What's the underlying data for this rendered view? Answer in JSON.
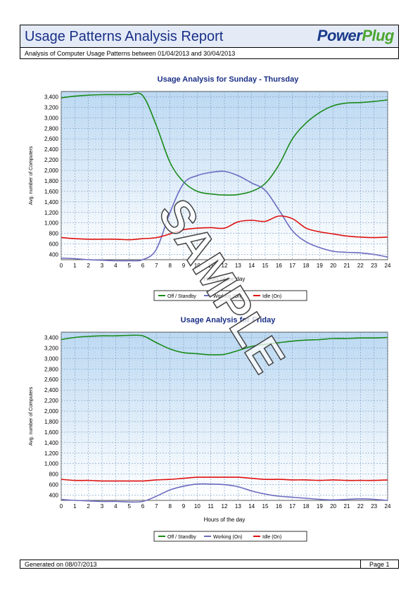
{
  "report": {
    "title": "Usage Patterns Analysis Report",
    "subtitle": "Analysis of Computer Usage Patterns between 01/04/2013 and 30/04/2013",
    "logo_part1": "Power",
    "logo_part2": "Plug",
    "footer_left": "Generated on  08/07/2013",
    "footer_right": "Page  1",
    "watermark": "SAMPLE"
  },
  "colors": {
    "off_standby": "#1a8a1a",
    "working": "#6b6bc0",
    "idle": "#e01010",
    "title": "#1a2f86"
  },
  "chart_data": [
    {
      "type": "line",
      "title": "Usage Analysis for Sunday - Thursday",
      "xlabel": "Hours of the day",
      "ylabel": "Avg. number of Computers",
      "xlim": [
        0,
        24
      ],
      "ylim": [
        300,
        3500
      ],
      "yticks": [
        400,
        600,
        800,
        1000,
        1200,
        1400,
        1600,
        1800,
        2000,
        2200,
        2400,
        2600,
        2800,
        3000,
        3200,
        3400
      ],
      "ytick_labels": [
        "400",
        "600",
        "800",
        "1,000",
        "1,200",
        "1,400",
        "1,600",
        "1,800",
        "2,000",
        "2,200",
        "2,400",
        "2,600",
        "2,800",
        "3,000",
        "3,200",
        "3,400"
      ],
      "xticks": [
        0,
        1,
        2,
        3,
        4,
        5,
        6,
        7,
        8,
        9,
        10,
        11,
        12,
        13,
        14,
        15,
        16,
        17,
        18,
        19,
        20,
        21,
        22,
        23,
        24
      ],
      "grid": true,
      "legend_position": "bottom",
      "x": [
        0,
        1,
        2,
        3,
        4,
        5,
        6,
        7,
        8,
        9,
        10,
        11,
        12,
        13,
        14,
        15,
        16,
        17,
        18,
        19,
        20,
        21,
        22,
        23,
        24
      ],
      "series": [
        {
          "name": "Off / Standby",
          "color_key": "off_standby",
          "values": [
            3380,
            3410,
            3430,
            3440,
            3440,
            3440,
            3420,
            2850,
            2150,
            1780,
            1600,
            1550,
            1530,
            1540,
            1600,
            1750,
            2100,
            2600,
            2900,
            3100,
            3230,
            3280,
            3290,
            3310,
            3340
          ]
        },
        {
          "name": "Working (On)",
          "color_key": "working",
          "values": [
            330,
            320,
            300,
            290,
            280,
            280,
            300,
            500,
            1200,
            1750,
            1900,
            1960,
            1980,
            1900,
            1760,
            1620,
            1250,
            850,
            640,
            530,
            460,
            440,
            430,
            400,
            350
          ]
        },
        {
          "name": "Idle (On)",
          "color_key": "idle",
          "values": [
            720,
            700,
            690,
            690,
            690,
            680,
            700,
            720,
            790,
            870,
            900,
            910,
            900,
            1020,
            1050,
            1030,
            1130,
            1080,
            900,
            830,
            790,
            750,
            730,
            720,
            730
          ]
        }
      ]
    },
    {
      "type": "line",
      "title": "Usage Analysis for Friday",
      "xlabel": "Hours of the day",
      "ylabel": "Avg. number of Computers",
      "xlim": [
        0,
        24
      ],
      "ylim": [
        300,
        3500
      ],
      "yticks": [
        400,
        600,
        800,
        1000,
        1200,
        1400,
        1600,
        1800,
        2000,
        2200,
        2400,
        2600,
        2800,
        3000,
        3200,
        3400
      ],
      "ytick_labels": [
        "400",
        "600",
        "800",
        "1,000",
        "1,200",
        "1,400",
        "1,600",
        "1,800",
        "2,000",
        "2,200",
        "2,400",
        "2,600",
        "2,800",
        "3,000",
        "3,200",
        "3,400"
      ],
      "xticks": [
        0,
        1,
        2,
        3,
        4,
        5,
        6,
        7,
        8,
        9,
        10,
        11,
        12,
        13,
        14,
        15,
        16,
        17,
        18,
        19,
        20,
        21,
        22,
        23,
        24
      ],
      "grid": true,
      "legend_position": "bottom",
      "x": [
        0,
        1,
        2,
        3,
        4,
        5,
        6,
        7,
        8,
        9,
        10,
        11,
        12,
        13,
        14,
        15,
        16,
        17,
        18,
        19,
        20,
        21,
        22,
        23,
        24
      ],
      "series": [
        {
          "name": "Off / Standby",
          "color_key": "off_standby",
          "values": [
            3360,
            3400,
            3420,
            3430,
            3430,
            3440,
            3430,
            3300,
            3180,
            3110,
            3090,
            3070,
            3080,
            3150,
            3230,
            3270,
            3300,
            3330,
            3350,
            3360,
            3380,
            3380,
            3390,
            3390,
            3400
          ]
        },
        {
          "name": "Working (On)",
          "color_key": "working",
          "values": [
            320,
            300,
            290,
            280,
            280,
            270,
            280,
            380,
            500,
            570,
            610,
            610,
            600,
            560,
            480,
            420,
            380,
            360,
            340,
            320,
            310,
            320,
            330,
            320,
            300
          ]
        },
        {
          "name": "Idle (On)",
          "color_key": "idle",
          "values": [
            700,
            680,
            680,
            670,
            670,
            670,
            670,
            690,
            700,
            720,
            740,
            740,
            740,
            740,
            720,
            700,
            700,
            690,
            690,
            680,
            690,
            680,
            680,
            680,
            690
          ]
        }
      ]
    }
  ]
}
